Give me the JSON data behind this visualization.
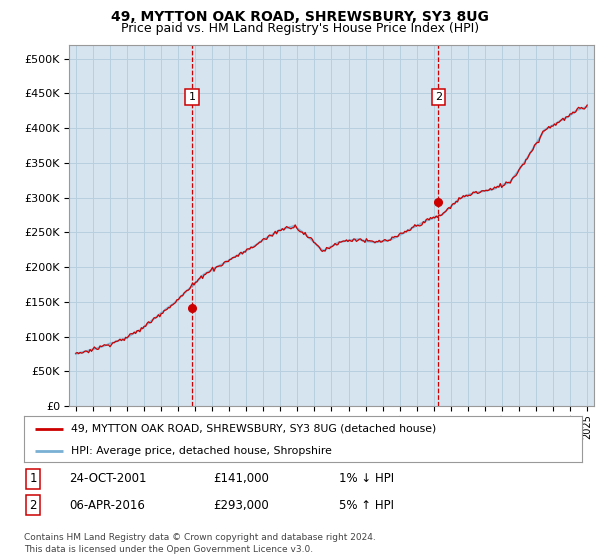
{
  "title": "49, MYTTON OAK ROAD, SHREWSBURY, SY3 8UG",
  "subtitle": "Price paid vs. HM Land Registry's House Price Index (HPI)",
  "title_fontsize": 10,
  "subtitle_fontsize": 9,
  "plot_bg_color": "#d6e4f0",
  "legend_label_red": "49, MYTTON OAK ROAD, SHREWSBURY, SY3 8UG (detached house)",
  "legend_label_blue": "HPI: Average price, detached house, Shropshire",
  "sale1_x": 2001.82,
  "sale1_y": 141000,
  "sale1_label": "1",
  "sale1_date": "24-OCT-2001",
  "sale1_price": "£141,000",
  "sale1_hpi": "1% ↓ HPI",
  "sale2_x": 2016.27,
  "sale2_y": 293000,
  "sale2_label": "2",
  "sale2_date": "06-APR-2016",
  "sale2_price": "£293,000",
  "sale2_hpi": "5% ↑ HPI",
  "ylim": [
    0,
    520000
  ],
  "xlim": [
    1994.6,
    2025.4
  ],
  "yticks": [
    0,
    50000,
    100000,
    150000,
    200000,
    250000,
    300000,
    350000,
    400000,
    450000,
    500000
  ],
  "footer": "Contains HM Land Registry data © Crown copyright and database right 2024.\nThis data is licensed under the Open Government Licence v3.0.",
  "red_color": "#cc0000",
  "blue_color": "#7ab0d4",
  "vline_color": "#cc0000",
  "grid_color": "#b8cfe0"
}
